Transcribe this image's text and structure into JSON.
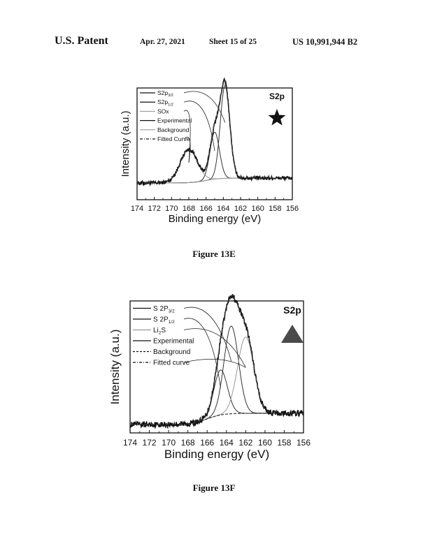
{
  "header": {
    "patent_label": "U.S. Patent",
    "date": "Apr. 27, 2021",
    "sheet": "Sheet 15 of 25",
    "number": "US 10,991,944 B2"
  },
  "figures": [
    {
      "caption": "Figure 13E",
      "badge": "S2p",
      "marker_icon": "star-icon",
      "chart_data": {
        "type": "line",
        "xlabel": "Binding energy (eV)",
        "ylabel": "Intensity (a.u.)",
        "xlim": [
          174,
          156
        ],
        "x_ticks": [
          174,
          172,
          170,
          168,
          166,
          164,
          162,
          160,
          158,
          156
        ],
        "legend": [
          {
            "base": "S2p",
            "sub": "3/2",
            "style": "solid"
          },
          {
            "base": "S2p",
            "sub": "1/2",
            "style": "solid"
          },
          {
            "base": "SOx",
            "sub": "",
            "style": "solid-light"
          },
          {
            "base": "Experimental",
            "sub": "",
            "style": "solid"
          },
          {
            "base": "Background",
            "sub": "",
            "style": "solid-light"
          },
          {
            "base": "Fitted Curve",
            "sub": "",
            "style": "dashdot"
          }
        ],
        "peaks": [
          {
            "name": "S2p 3/2",
            "center": 163.8,
            "amplitude": 0.95,
            "width": 0.55
          },
          {
            "name": "S2p 1/2",
            "center": 165.0,
            "amplitude": 0.48,
            "width": 0.55
          },
          {
            "name": "SOx",
            "center": 168.0,
            "amplitude": 0.34,
            "width": 1.0
          }
        ]
      }
    },
    {
      "caption": "Figure 13F",
      "badge": "S2p",
      "marker_icon": "triangle-icon",
      "chart_data": {
        "type": "line",
        "xlabel": "Binding energy (eV)",
        "ylabel": "Intensity (a.u.)",
        "xlim": [
          174,
          156
        ],
        "x_ticks": [
          174,
          172,
          170,
          168,
          166,
          164,
          162,
          160,
          158,
          156
        ],
        "legend": [
          {
            "base": "S 2P",
            "sub": "3/2",
            "style": "solid"
          },
          {
            "base": "S 2P",
            "sub": "1/2",
            "style": "solid"
          },
          {
            "base": "Li",
            "sub": "2",
            "after": "S",
            "style": "solid-light"
          },
          {
            "base": "Experimental",
            "sub": "",
            "style": "solid"
          },
          {
            "base": "Background",
            "sub": "",
            "style": "dashed"
          },
          {
            "base": "Fitted curve",
            "sub": "",
            "style": "dashdot"
          }
        ],
        "peaks": [
          {
            "name": "S 2P 3/2",
            "center": 163.5,
            "amplitude": 0.78,
            "width": 0.75
          },
          {
            "name": "S 2P 1/2",
            "center": 164.6,
            "amplitude": 0.4,
            "width": 0.7
          },
          {
            "name": "Li2S",
            "center": 162.0,
            "amplitude": 0.68,
            "width": 0.85
          }
        ]
      }
    }
  ]
}
